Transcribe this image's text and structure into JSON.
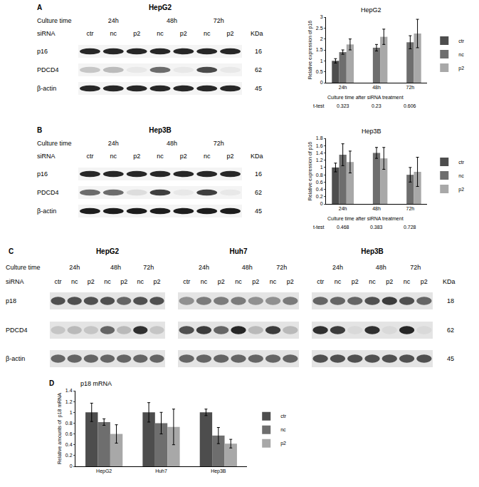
{
  "blots": [
    {
      "panel": "A",
      "culture_time_label": "Culture time",
      "sirna_label": "siRNA",
      "kda_label": "KDa",
      "proteins": [
        {
          "name": "p16",
          "kda": 16
        },
        {
          "name": "PDCD4",
          "kda": 62
        },
        {
          "name": "β-actin",
          "kda": 45
        }
      ],
      "blots": [
        {
          "title": "HepG2",
          "groups": [
            {
              "time": "24h",
              "lanes": [
                "ctr",
                "nc",
                "p2"
              ]
            },
            {
              "time": "48h",
              "lanes": [
                "nc",
                "p2"
              ]
            },
            {
              "time": "72h",
              "lanes": [
                "nc",
                "p2"
              ]
            }
          ],
          "bands": [
            [
              0.9,
              0.9,
              0.9,
              0.9,
              0.9,
              0.9,
              0.9
            ],
            [
              0.2,
              0.25,
              0.05,
              0.6,
              0.05,
              0.75,
              0.05
            ],
            [
              0.9,
              0.9,
              0.9,
              0.9,
              0.9,
              0.9,
              0.9
            ]
          ]
        }
      ]
    },
    {
      "panel": "B",
      "culture_time_label": "Culture time",
      "sirna_label": "siRNA",
      "kda_label": "KDa",
      "proteins": [
        {
          "name": "p16",
          "kda": 16
        },
        {
          "name": "PDCD4",
          "kda": 62
        },
        {
          "name": "β-actin",
          "kda": 45
        }
      ],
      "blots": [
        {
          "title": "Hep3B",
          "groups": [
            {
              "time": "24h",
              "lanes": [
                "ctr",
                "nc",
                "p2"
              ]
            },
            {
              "time": "48h",
              "lanes": [
                "nc",
                "p2"
              ]
            },
            {
              "time": "72h",
              "lanes": [
                "nc",
                "p2"
              ]
            }
          ],
          "bands": [
            [
              0.9,
              0.9,
              0.9,
              0.9,
              0.9,
              0.9,
              0.9
            ],
            [
              0.6,
              0.6,
              0.1,
              0.8,
              0.05,
              0.8,
              0.05
            ],
            [
              0.95,
              0.95,
              0.95,
              0.95,
              0.95,
              0.95,
              0.95
            ]
          ]
        }
      ]
    },
    {
      "panel": "C",
      "culture_time_label": "Culture time",
      "sirna_label": "siRNA",
      "kda_label": "KDa",
      "proteins": [
        {
          "name": "p18",
          "kda": 18
        },
        {
          "name": "PDCD4",
          "kda": 62
        },
        {
          "name": "β-actin",
          "kda": 45
        }
      ],
      "blots": [
        {
          "title": "HepG2",
          "groups": [
            {
              "time": "24h",
              "lanes": [
                "ctr",
                "nc",
                "p2"
              ]
            },
            {
              "time": "48h",
              "lanes": [
                "nc",
                "p2"
              ]
            },
            {
              "time": "72h",
              "lanes": [
                "nc",
                "p2"
              ]
            }
          ],
          "bands": [
            [
              0.7,
              0.7,
              0.7,
              0.7,
              0.6,
              0.7,
              0.7
            ],
            [
              0.15,
              0.2,
              0.15,
              0.6,
              0.2,
              0.85,
              0.15
            ],
            [
              0.6,
              0.6,
              0.6,
              0.6,
              0.6,
              0.6,
              0.6
            ]
          ]
        },
        {
          "title": "Huh7",
          "groups": [
            {
              "time": "24h",
              "lanes": [
                "ctr",
                "nc",
                "p2"
              ]
            },
            {
              "time": "48h",
              "lanes": [
                "nc",
                "p2"
              ]
            },
            {
              "time": "72h",
              "lanes": [
                "nc",
                "p2"
              ]
            }
          ],
          "bands": [
            [
              0.4,
              0.5,
              0.5,
              0.5,
              0.4,
              0.4,
              0.5
            ],
            [
              0.7,
              0.8,
              0.6,
              0.9,
              0.2,
              0.8,
              0.2
            ],
            [
              0.6,
              0.6,
              0.6,
              0.6,
              0.6,
              0.6,
              0.6
            ]
          ]
        },
        {
          "title": "Hep3B",
          "groups": [
            {
              "time": "24h",
              "lanes": [
                "ctr",
                "nc",
                "p2"
              ]
            },
            {
              "time": "48h",
              "lanes": [
                "nc",
                "p2"
              ]
            },
            {
              "time": "72h",
              "lanes": [
                "nc",
                "p2"
              ]
            }
          ],
          "bands": [
            [
              0.6,
              0.6,
              0.6,
              0.7,
              0.8,
              0.7,
              0.6
            ],
            [
              0.85,
              0.8,
              0.05,
              0.85,
              0.05,
              0.9,
              0.05
            ],
            [
              0.7,
              0.7,
              0.7,
              0.7,
              0.7,
              0.7,
              0.7
            ]
          ]
        }
      ]
    }
  ],
  "chart_data": [
    {
      "type": "bar",
      "title": "HepG2",
      "y_label": "Relative expression of p16",
      "x_label": "Culture time after siRNA treatment",
      "categories": [
        "24h",
        "48h",
        "72h"
      ],
      "series": [
        {
          "name": "ctr",
          "color": "#4d4d4d",
          "values": [
            1.0,
            null,
            null
          ],
          "errors": [
            0.1,
            null,
            null
          ]
        },
        {
          "name": "nc",
          "color": "#6e6e6e",
          "values": [
            1.4,
            1.6,
            1.85
          ],
          "errors": [
            0.1,
            0.15,
            0.3
          ]
        },
        {
          "name": "p2",
          "color": "#a8a8a8",
          "values": [
            1.75,
            2.1,
            2.25
          ],
          "errors": [
            0.25,
            0.35,
            0.65
          ]
        }
      ],
      "t_test_label": "t-test",
      "t_test": [
        0.323,
        0.23,
        0.606
      ],
      "ylim": [
        0,
        3
      ],
      "yticks": [
        0,
        0.5,
        1,
        1.5,
        2,
        2.5,
        3
      ],
      "grid": false,
      "legend": "right"
    },
    {
      "type": "bar",
      "title": "Hep3B",
      "y_label": "Relative expression of p16",
      "x_label": "Culture time after siRNA treatment",
      "categories": [
        "24h",
        "48h",
        "72h"
      ],
      "series": [
        {
          "name": "ctr",
          "color": "#4d4d4d",
          "values": [
            1.0,
            null,
            null
          ],
          "errors": [
            0.12,
            null,
            null
          ]
        },
        {
          "name": "nc",
          "color": "#6e6e6e",
          "values": [
            1.35,
            1.4,
            0.8
          ],
          "errors": [
            0.3,
            0.15,
            0.2
          ]
        },
        {
          "name": "p2",
          "color": "#a8a8a8",
          "values": [
            1.15,
            1.25,
            0.88
          ],
          "errors": [
            0.3,
            0.3,
            0.4
          ]
        }
      ],
      "t_test_label": "t-test",
      "t_test": [
        0.468,
        0.383,
        0.728
      ],
      "ylim": [
        0,
        1.8
      ],
      "yticks": [
        0,
        0.2,
        0.4,
        0.6,
        0.8,
        1,
        1.2,
        1.4,
        1.6,
        1.8
      ],
      "grid": false,
      "legend": "right"
    },
    {
      "type": "bar",
      "panel": "D",
      "title": "p18 mRNA",
      "y_label": "Relative amounts of  p18 mRNA",
      "categories": [
        "HepG2",
        "Huh7",
        "Hep3B"
      ],
      "series": [
        {
          "name": "ctr",
          "color": "#4d4d4d",
          "values": [
            1.0,
            1.0,
            1.0
          ],
          "errors": [
            0.17,
            0.18,
            0.06
          ]
        },
        {
          "name": "nc",
          "color": "#6e6e6e",
          "values": [
            0.82,
            0.8,
            0.57
          ],
          "errors": [
            0.06,
            0.2,
            0.15
          ]
        },
        {
          "name": "p2",
          "color": "#a8a8a8",
          "values": [
            0.6,
            0.73,
            0.42
          ],
          "errors": [
            0.17,
            0.33,
            0.08
          ]
        }
      ],
      "ylim": [
        0,
        1.4
      ],
      "yticks": [
        0,
        0.2,
        0.4,
        0.6,
        0.8,
        1,
        1.2,
        1.4
      ],
      "grid": false,
      "legend": "right"
    }
  ]
}
